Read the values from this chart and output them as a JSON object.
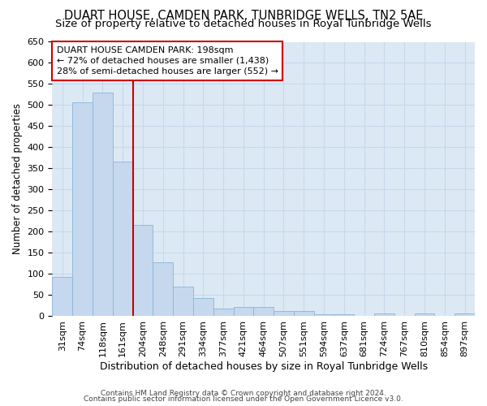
{
  "title": "DUART HOUSE, CAMDEN PARK, TUNBRIDGE WELLS, TN2 5AE",
  "subtitle": "Size of property relative to detached houses in Royal Tunbridge Wells",
  "xlabel": "Distribution of detached houses by size in Royal Tunbridge Wells",
  "ylabel": "Number of detached properties",
  "footer1": "Contains HM Land Registry data © Crown copyright and database right 2024.",
  "footer2": "Contains public sector information licensed under the Open Government Licence v3.0.",
  "categories": [
    "31sqm",
    "74sqm",
    "118sqm",
    "161sqm",
    "204sqm",
    "248sqm",
    "291sqm",
    "334sqm",
    "377sqm",
    "421sqm",
    "464sqm",
    "507sqm",
    "551sqm",
    "594sqm",
    "637sqm",
    "681sqm",
    "724sqm",
    "767sqm",
    "810sqm",
    "854sqm",
    "897sqm"
  ],
  "values": [
    93,
    507,
    530,
    365,
    215,
    127,
    70,
    43,
    18,
    21,
    21,
    11,
    11,
    3,
    3,
    0,
    6,
    0,
    6,
    0,
    6
  ],
  "bar_color": "#c5d8ee",
  "bar_edgecolor": "#8ab4d8",
  "vline_color": "#cc0000",
  "annotation_text": "DUART HOUSE CAMDEN PARK: 198sqm\n← 72% of detached houses are smaller (1,438)\n28% of semi-detached houses are larger (552) →",
  "annotation_box_edgecolor": "#cc0000",
  "ylim": [
    0,
    650
  ],
  "yticks": [
    0,
    50,
    100,
    150,
    200,
    250,
    300,
    350,
    400,
    450,
    500,
    550,
    600,
    650
  ],
  "grid_color": "#c8d8ea",
  "background_color": "#dce9f5",
  "title_fontsize": 10.5,
  "subtitle_fontsize": 9.5,
  "xlabel_fontsize": 9,
  "ylabel_fontsize": 8.5,
  "tick_fontsize": 8,
  "annotation_fontsize": 8,
  "footer_fontsize": 6.5
}
